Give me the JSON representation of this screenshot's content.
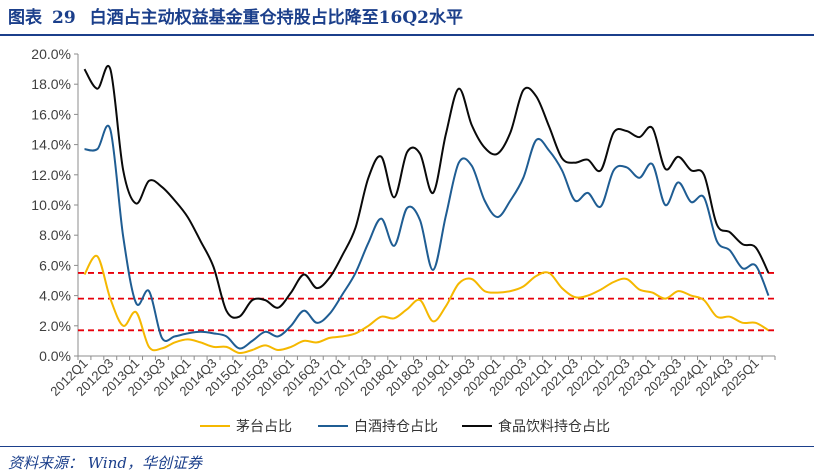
{
  "figure": {
    "label": "图表",
    "number": "29",
    "title": "白酒占主动权益基金重仓持股占比降至16Q2水平",
    "source": "资料来源：  Wind，华创证券"
  },
  "colors": {
    "maotai": "#f5b800",
    "baijiu": "#1f5d93",
    "food": "#0a0a0a",
    "refline": "#e8000b",
    "header": "#1b3f8b"
  },
  "chart_data": {
    "type": "line",
    "ylim": [
      0,
      20
    ],
    "yticks": [
      "0.0%",
      "2.0%",
      "4.0%",
      "6.0%",
      "8.0%",
      "10.0%",
      "12.0%",
      "14.0%",
      "16.0%",
      "18.0%",
      "20.0%"
    ],
    "x": [
      "2012Q1",
      "2012Q2",
      "2012Q3",
      "2012Q4",
      "2013Q1",
      "2013Q2",
      "2013Q3",
      "2013Q4",
      "2014Q1",
      "2014Q2",
      "2014Q3",
      "2014Q4",
      "2015Q1",
      "2015Q2",
      "2015Q3",
      "2015Q4",
      "2016Q1",
      "2016Q2",
      "2016Q3",
      "2016Q4",
      "2017Q1",
      "2017Q2",
      "2017Q3",
      "2017Q4",
      "2018Q1",
      "2018Q2",
      "2018Q3",
      "2018Q4",
      "2019Q1",
      "2019Q2",
      "2019Q3",
      "2019Q4",
      "2020Q1",
      "2020Q2",
      "2020Q3",
      "2020Q4",
      "2021Q1",
      "2021Q2",
      "2021Q3",
      "2021Q4",
      "2022Q1",
      "2022Q2",
      "2022Q3",
      "2022Q4",
      "2023Q1",
      "2023Q2",
      "2023Q3",
      "2023Q4",
      "2024Q1",
      "2024Q2",
      "2024Q3",
      "2024Q4",
      "2025Q1",
      "2025Q2"
    ],
    "xtick_labels": [
      "2012Q1",
      "2012Q3",
      "2013Q1",
      "2013Q3",
      "2014Q1",
      "2014Q3",
      "2015Q1",
      "2015Q3",
      "2016Q1",
      "2016Q3",
      "2017Q1",
      "2017Q3",
      "2018Q1",
      "2018Q3",
      "2019Q1",
      "2019Q3",
      "2020Q1",
      "2020Q3",
      "2021Q1",
      "2021Q3",
      "2022Q1",
      "2022Q3",
      "2023Q1",
      "2023Q3",
      "2024Q1",
      "2024Q3",
      "2025Q1"
    ],
    "series": [
      {
        "name": "茅台占比",
        "color_key": "maotai",
        "values": [
          5.4,
          6.6,
          3.8,
          2.0,
          2.9,
          0.6,
          0.5,
          0.9,
          1.1,
          0.9,
          0.6,
          0.6,
          0.2,
          0.4,
          0.7,
          0.4,
          0.6,
          1.0,
          0.9,
          1.2,
          1.3,
          1.5,
          2.0,
          2.6,
          2.5,
          3.1,
          3.7,
          2.3,
          3.3,
          4.8,
          5.1,
          4.3,
          4.2,
          4.3,
          4.6,
          5.3,
          5.5,
          4.5,
          3.9,
          4.0,
          4.4,
          4.9,
          5.1,
          4.4,
          4.2,
          3.8,
          4.3,
          4.0,
          3.7,
          2.6,
          2.6,
          2.2,
          2.2,
          1.7
        ]
      },
      {
        "name": "白酒持仓占比",
        "color_key": "baijiu",
        "values": [
          13.7,
          13.7,
          15.0,
          7.9,
          3.5,
          4.3,
          1.2,
          1.3,
          1.5,
          1.6,
          1.5,
          1.3,
          0.5,
          1.0,
          1.6,
          1.3,
          2.0,
          3.0,
          2.2,
          2.8,
          4.1,
          5.5,
          7.5,
          9.1,
          7.3,
          9.8,
          9.0,
          5.7,
          9.3,
          12.8,
          12.6,
          10.3,
          9.2,
          10.3,
          11.8,
          14.3,
          13.6,
          12.3,
          10.3,
          10.8,
          9.9,
          12.3,
          12.5,
          11.8,
          12.7,
          10.0,
          11.5,
          10.2,
          10.5,
          7.6,
          7.0,
          5.8,
          6.0,
          4.0
        ]
      },
      {
        "name": "食品饮料持仓占比",
        "color_key": "food",
        "values": [
          19.0,
          17.7,
          19.0,
          12.3,
          10.1,
          11.6,
          11.2,
          10.3,
          9.2,
          7.6,
          5.9,
          3.0,
          2.6,
          3.7,
          3.7,
          3.2,
          4.2,
          5.4,
          4.5,
          5.2,
          6.7,
          8.5,
          11.8,
          13.2,
          10.5,
          13.5,
          13.4,
          10.8,
          14.7,
          17.7,
          15.3,
          13.8,
          13.4,
          14.8,
          17.6,
          17.2,
          15.2,
          13.1,
          12.8,
          13.0,
          12.3,
          14.8,
          14.9,
          14.5,
          15.1,
          12.4,
          13.2,
          12.3,
          12.0,
          8.7,
          8.2,
          7.4,
          7.2,
          5.5
        ]
      }
    ],
    "reference_lines": [
      5.5,
      3.8,
      1.7
    ]
  }
}
